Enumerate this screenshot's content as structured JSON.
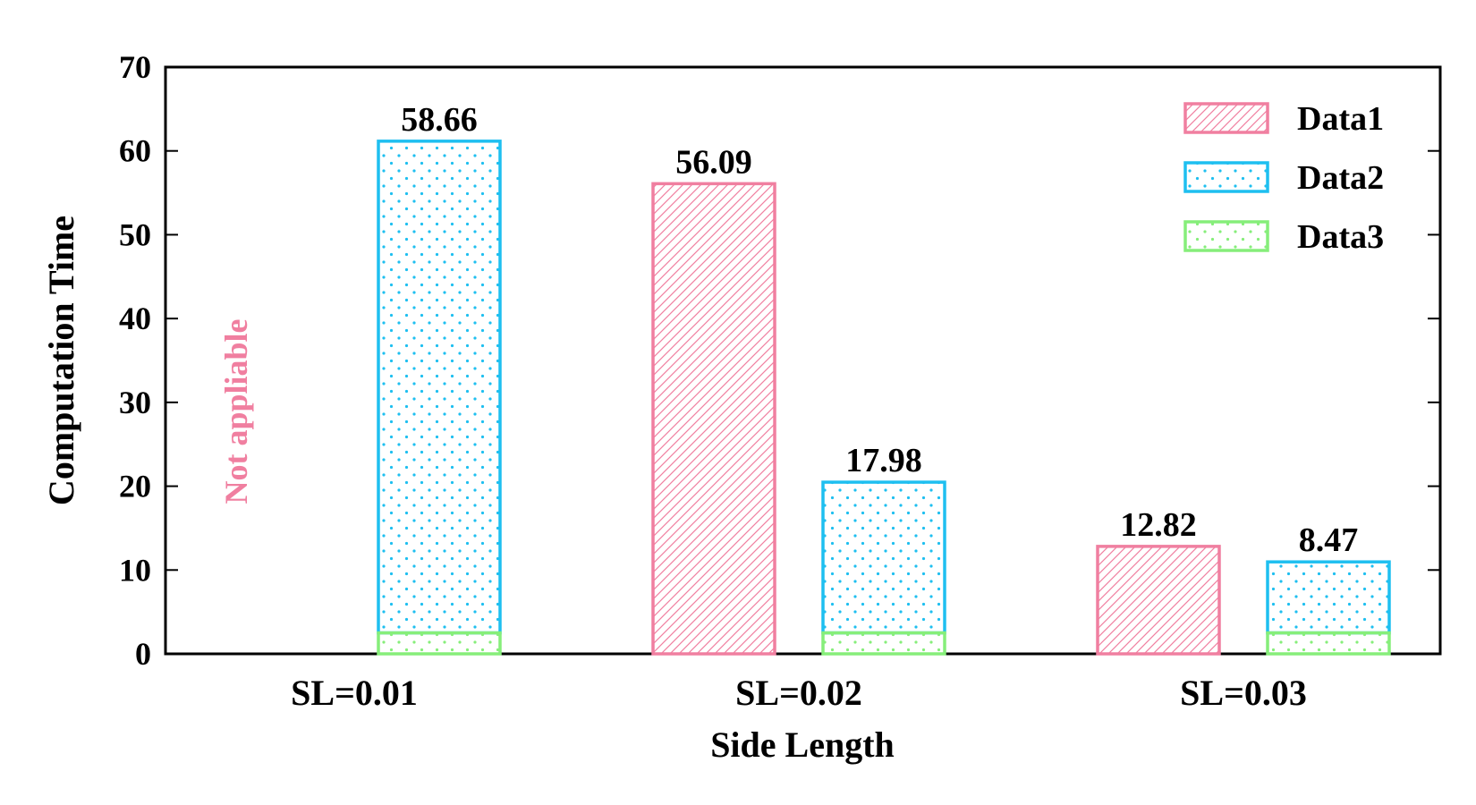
{
  "chart_data": {
    "type": "bar",
    "categories": [
      "SL=0.01",
      "SL=0.02",
      "SL=0.03"
    ],
    "series": [
      {
        "name": "Data1",
        "values": [
          null,
          56.09,
          12.82
        ],
        "labels": [
          "",
          "56.09",
          "12.82"
        ],
        "color": "#f07fa0",
        "pattern": "hatch"
      },
      {
        "name": "Data2",
        "values": [
          58.66,
          17.98,
          8.47
        ],
        "labels": [
          "58.66",
          "17.98",
          "8.47"
        ],
        "color": "#1ebff0",
        "pattern": "dots"
      },
      {
        "name": "Data3",
        "values": [
          2.5,
          2.5,
          2.5
        ],
        "labels": [
          "",
          "",
          ""
        ],
        "color": "#86ee7a",
        "pattern": "dots"
      }
    ],
    "title": "",
    "xlabel": "Side Length",
    "ylabel": "Computation Time",
    "ylim": [
      0,
      70
    ],
    "yticks": [
      "0",
      "10",
      "20",
      "30",
      "40",
      "50",
      "60",
      "70"
    ],
    "grid": false,
    "legend_position": "top-right",
    "annotation": {
      "text": "Not appliable",
      "category": "SL=0.01",
      "series": "Data1",
      "color": "#f07fa0"
    }
  }
}
